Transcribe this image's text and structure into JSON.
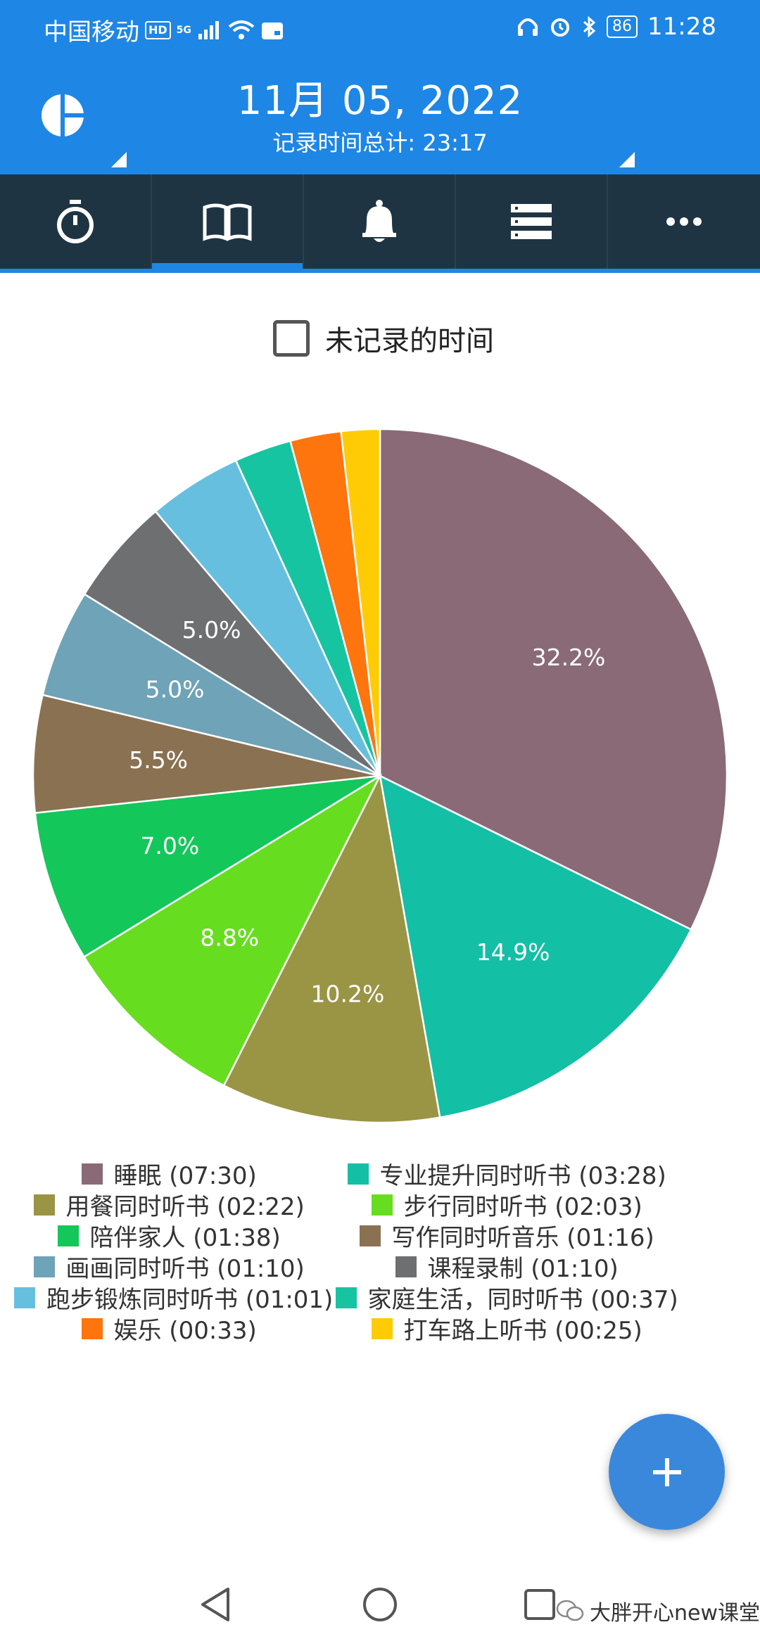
{
  "status_bar": {
    "carrier": "中国移动",
    "hd": "HD",
    "network": "5G",
    "battery": "86",
    "time": "11:28"
  },
  "header": {
    "date": "11月 05, 2022",
    "total": "记录时间总计: 23:17"
  },
  "tabs": [
    {
      "icon": "stopwatch-icon",
      "active": false
    },
    {
      "icon": "book-icon",
      "active": true
    },
    {
      "icon": "bell-icon",
      "active": false
    },
    {
      "icon": "list-icon",
      "active": false
    },
    {
      "icon": "more-icon",
      "active": false
    }
  ],
  "untracked": {
    "label": "未记录的时间",
    "checked": false
  },
  "colors": {
    "primary": "#1e86e5",
    "tabbar": "#1f3442",
    "fab": "#3a88dc"
  },
  "chart_data": {
    "type": "pie",
    "series": [
      {
        "name": "睡眠",
        "time": "07:30",
        "minutes": 450,
        "percent": "32.2%",
        "color": "#8a6a77"
      },
      {
        "name": "专业提升同时听书",
        "time": "03:28",
        "minutes": 208,
        "percent": "14.9%",
        "color": "#13bfa5"
      },
      {
        "name": "用餐同时听书",
        "time": "02:22",
        "minutes": 142,
        "percent": "10.2%",
        "color": "#9a9445"
      },
      {
        "name": "步行同时听书",
        "time": "02:03",
        "minutes": 123,
        "percent": "8.8%",
        "color": "#67dd1f"
      },
      {
        "name": "陪伴家人",
        "time": "01:38",
        "minutes": 98,
        "percent": "7.0%",
        "color": "#13c75a"
      },
      {
        "name": "写作同时听音乐",
        "time": "01:16",
        "minutes": 76,
        "percent": "5.5%",
        "color": "#8a7151"
      },
      {
        "name": "画画同时听书",
        "time": "01:10",
        "minutes": 70,
        "percent": "5.0%",
        "color": "#6fa3b7"
      },
      {
        "name": "课程录制",
        "time": "01:10",
        "minutes": 70,
        "percent": "5.0%",
        "color": "#6e6f71"
      },
      {
        "name": "跑步锻炼同时听书",
        "time": "01:01",
        "minutes": 61,
        "percent": "",
        "color": "#67bfe0"
      },
      {
        "name": "家庭生活，同时听书",
        "time": "00:37",
        "minutes": 37,
        "percent": "",
        "color": "#17c4a2"
      },
      {
        "name": "娱乐",
        "time": "00:33",
        "minutes": 33,
        "percent": "",
        "color": "#fe740d"
      },
      {
        "name": "打车路上听书",
        "time": "00:25",
        "minutes": 25,
        "percent": "",
        "color": "#ffcb05"
      }
    ],
    "legend_placement": "bottom"
  },
  "fab": {
    "icon": "plus-icon"
  },
  "navbar": {
    "back_icon": "back-icon",
    "home_icon": "home-icon",
    "recents_icon": "recents-icon"
  },
  "watermark": "大胖开心new课堂"
}
